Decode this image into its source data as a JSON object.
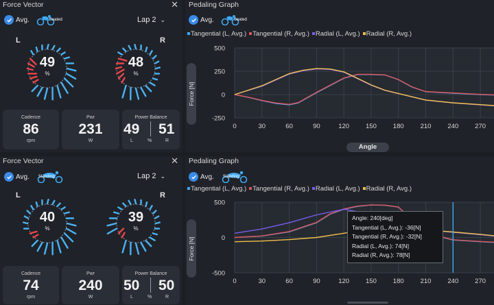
{
  "top": {
    "vector": {
      "title": "Force Vector",
      "avg_label": "Avg.",
      "pose_label": "Seated",
      "lap": "Lap 2",
      "left": {
        "side": "L",
        "pct": "49",
        "unit": "%"
      },
      "right": {
        "side": "R",
        "pct": "48",
        "unit": "%"
      },
      "cadence": {
        "label": "Cadence",
        "value": "86",
        "unit": "rpm"
      },
      "power": {
        "label": "Pwr",
        "value": "231",
        "unit": "W"
      },
      "balance": {
        "label": "Power Balance",
        "left": "49",
        "right": "51",
        "l": "L",
        "pct": "%",
        "r": "R"
      }
    },
    "graph": {
      "title": "Pedaling Graph",
      "avg_label": "Avg.",
      "pose_label": "Seated",
      "y_button": "Force [N]",
      "x_button": "Angle"
    }
  },
  "bottom": {
    "vector": {
      "title": "Force Vector",
      "avg_label": "Avg.",
      "pose_label": "Standing",
      "lap": "Lap 2",
      "left": {
        "side": "L",
        "pct": "40",
        "unit": "%"
      },
      "right": {
        "side": "R",
        "pct": "39",
        "unit": "%"
      },
      "cadence": {
        "label": "Cadence",
        "value": "74",
        "unit": "rpm"
      },
      "power": {
        "label": "Pwr",
        "value": "240",
        "unit": "W"
      },
      "balance": {
        "label": "Power Balance",
        "left": "50",
        "right": "50",
        "l": "L",
        "pct": "%",
        "r": "R"
      }
    },
    "graph": {
      "title": "Pedaling Graph",
      "avg_label": "Avg.",
      "pose_label": "Standing",
      "y_button": "Force [N]",
      "tooltip": [
        "Angle: 240[deg]",
        "Tangential (L, Avg.): -36[N]",
        "Tangential (R, Avg.): -32[N]",
        "Radial (L, Avg.): 74[N]",
        "Radial (R, Avg.): 78[N]"
      ]
    }
  },
  "colors": {
    "tangential_l": "#3fa9f5",
    "tangential_r": "#e0535a",
    "radial_l": "#7b5cf0",
    "radial_r": "#f2c04a",
    "check": "#3a8be8",
    "gauge_blue": "#4ab3f4",
    "gauge_red": "#e8454a"
  },
  "icons": [
    "check-icon",
    "close-icon",
    "chevron-down-icon",
    "seated-cyclist-icon",
    "standing-cyclist-icon"
  ],
  "chart_data": [
    {
      "type": "line",
      "y_ticks": [
        500,
        250,
        0,
        -250
      ],
      "x_ticks": [
        0,
        30,
        60,
        90,
        120,
        150,
        180,
        210,
        240,
        270
      ],
      "xlim": [
        0,
        285
      ],
      "ylim": [
        -250,
        500
      ],
      "grid": true,
      "series": [
        {
          "name": "Tangential (L, Avg.)",
          "color": "#3fa9f5",
          "x": [
            0,
            15,
            30,
            45,
            60,
            70,
            90,
            120,
            135,
            150,
            165,
            180,
            195,
            210,
            240,
            270,
            285
          ],
          "y": [
            0,
            -30,
            -65,
            -95,
            -110,
            -90,
            20,
            175,
            215,
            215,
            210,
            160,
            80,
            30,
            15,
            0,
            -5
          ]
        },
        {
          "name": "Tangential (R, Avg.)",
          "color": "#e0535a",
          "x": [
            0,
            15,
            30,
            45,
            60,
            70,
            90,
            120,
            135,
            150,
            165,
            180,
            195,
            210,
            240,
            270,
            285
          ],
          "y": [
            0,
            -28,
            -62,
            -90,
            -105,
            -85,
            25,
            178,
            218,
            218,
            212,
            162,
            82,
            32,
            18,
            2,
            -3
          ]
        },
        {
          "name": "Radial (L, Avg.)",
          "color": "#7b5cf0",
          "x": [
            0,
            30,
            60,
            75,
            90,
            105,
            120,
            135,
            150,
            165,
            180,
            210,
            240,
            270,
            285
          ],
          "y": [
            0,
            90,
            220,
            255,
            275,
            270,
            240,
            170,
            100,
            45,
            10,
            -60,
            -90,
            -110,
            -120
          ]
        },
        {
          "name": "Radial (R, Avg.)",
          "color": "#f2c04a",
          "x": [
            0,
            30,
            60,
            75,
            90,
            105,
            120,
            135,
            150,
            165,
            180,
            210,
            240,
            270,
            285
          ],
          "y": [
            0,
            95,
            225,
            260,
            280,
            274,
            244,
            174,
            104,
            48,
            12,
            -58,
            -88,
            -108,
            -118
          ]
        }
      ]
    },
    {
      "type": "line",
      "y_ticks": [
        500,
        0,
        -500
      ],
      "x_ticks": [
        0,
        30,
        60,
        90,
        120,
        150,
        180,
        210,
        240,
        270
      ],
      "xlim": [
        0,
        285
      ],
      "ylim": [
        -500,
        500
      ],
      "grid": true,
      "series": [
        {
          "name": "Tangential (L, Avg.)",
          "color": "#3fa9f5",
          "x": [
            0,
            30,
            60,
            90,
            105,
            120,
            135,
            150,
            165,
            180,
            195,
            210,
            240,
            270,
            285
          ],
          "y": [
            0,
            20,
            80,
            210,
            330,
            400,
            440,
            460,
            455,
            430,
            250,
            60,
            -36,
            -60,
            -70
          ]
        },
        {
          "name": "Tangential (R, Avg.)",
          "color": "#e0535a",
          "x": [
            0,
            30,
            60,
            90,
            105,
            120,
            135,
            150,
            165,
            180,
            195,
            210,
            240,
            270,
            285
          ],
          "y": [
            0,
            22,
            84,
            215,
            335,
            405,
            445,
            462,
            458,
            432,
            252,
            64,
            -32,
            -56,
            -66
          ]
        },
        {
          "name": "Radial (L, Avg.)",
          "color": "#7b5cf0",
          "x": [
            0,
            30,
            60,
            90,
            120,
            150,
            180,
            210,
            240,
            270,
            285
          ],
          "y": [
            60,
            120,
            210,
            320,
            400,
            330,
            200,
            110,
            74,
            40,
            20
          ]
        },
        {
          "name": "Radial (R, Avg.)",
          "color": "#f2c04a",
          "x": [
            0,
            30,
            60,
            90,
            120,
            150,
            180,
            210,
            240,
            270,
            285
          ],
          "y": [
            -60,
            -50,
            -30,
            0,
            60,
            120,
            140,
            110,
            78,
            45,
            25
          ]
        }
      ],
      "cursor_x": 240
    }
  ]
}
